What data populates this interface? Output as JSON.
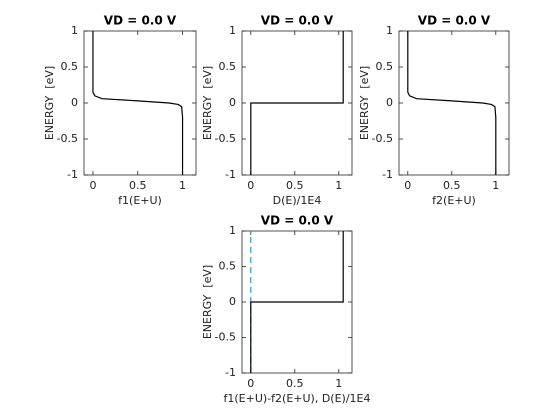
{
  "chart_data": [
    {
      "type": "line",
      "title": "VD = 0.0 V",
      "xlabel": "f1(E+U)",
      "ylabel": "ENERGY  [eV]",
      "xlim": [
        -0.1,
        1.15
      ],
      "ylim": [
        -1,
        1
      ],
      "xticks": [
        0,
        0.5,
        1
      ],
      "yticks": [
        -1,
        -0.5,
        0,
        0.5,
        1
      ],
      "series": [
        {
          "color": "#000000",
          "dash": false,
          "x": [
            0,
            0,
            0.02,
            0.1,
            0.5,
            0.85,
            0.95,
            0.99,
            1,
            1
          ],
          "values": [
            1,
            0.15,
            0.1,
            0.06,
            0.03,
            0,
            -0.02,
            -0.05,
            -0.2,
            -1
          ]
        }
      ]
    },
    {
      "type": "line",
      "title": "VD = 0.0 V",
      "xlabel": "D(E)/1E4",
      "ylabel": "ENERGY  [eV]",
      "xlim": [
        -0.1,
        1.15
      ],
      "ylim": [
        -1,
        1
      ],
      "xticks": [
        0,
        0.5,
        1
      ],
      "yticks": [
        -1,
        -0.5,
        0,
        0.5,
        1
      ],
      "series": [
        {
          "color": "#000000",
          "dash": false,
          "x": [
            0,
            0,
            1.05,
            1.05
          ],
          "values": [
            -1,
            0,
            0,
            1
          ]
        }
      ]
    },
    {
      "type": "line",
      "title": "VD = 0.0 V",
      "xlabel": "f2(E+U)",
      "ylabel": "ENERGY  [eV]",
      "xlim": [
        -0.1,
        1.15
      ],
      "ylim": [
        -1,
        1
      ],
      "xticks": [
        0,
        0.5,
        1
      ],
      "yticks": [
        -1,
        -0.5,
        0,
        0.5,
        1
      ],
      "series": [
        {
          "color": "#000000",
          "dash": false,
          "x": [
            0,
            0,
            0.02,
            0.1,
            0.5,
            0.85,
            0.95,
            0.99,
            1,
            1
          ],
          "values": [
            1,
            0.15,
            0.1,
            0.06,
            0.03,
            0,
            -0.02,
            -0.05,
            -0.2,
            -1
          ]
        }
      ]
    },
    {
      "type": "line",
      "title": "VD = 0.0 V",
      "xlabel": "f1(E+U)-f2(E+U), D(E)/1E4",
      "ylabel": "ENERGY  [eV]",
      "xlim": [
        -0.1,
        1.15
      ],
      "ylim": [
        -1,
        1
      ],
      "xticks": [
        0,
        0.5,
        1
      ],
      "yticks": [
        -1,
        -0.5,
        0,
        0.5,
        1
      ],
      "series": [
        {
          "color": "#3399cc",
          "dash": true,
          "x": [
            0,
            0
          ],
          "values": [
            -1,
            1
          ]
        },
        {
          "color": "#000000",
          "dash": false,
          "x": [
            0,
            0,
            1.05,
            1.05
          ],
          "values": [
            -1,
            0,
            0,
            1
          ]
        }
      ]
    }
  ]
}
